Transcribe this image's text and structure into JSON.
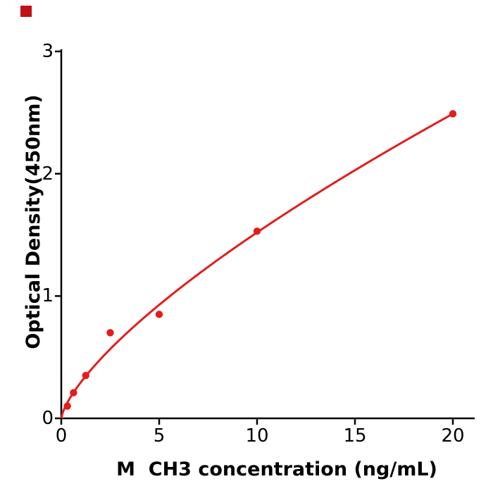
{
  "corner_mark": {
    "color": "#c01016"
  },
  "chart_data": {
    "type": "scatter",
    "title": "",
    "xlabel": "M  CH3 concentration (ng/mL)",
    "ylabel": "Optical Density(450nm)",
    "x": [
      0.312,
      0.625,
      1.25,
      2.5,
      5,
      10,
      20
    ],
    "y": [
      0.1,
      0.21,
      0.35,
      0.7,
      0.85,
      1.53,
      2.49
    ],
    "fit_curve": {
      "type": "power",
      "a": 0.295,
      "b": 0.712,
      "x_start": 0,
      "x_end": 20
    },
    "xlim": [
      0,
      21.1
    ],
    "ylim": [
      0,
      3
    ],
    "xticks": [
      0,
      5,
      10,
      15,
      20
    ],
    "yticks": [
      0,
      1,
      2,
      3
    ],
    "grid": false,
    "legend": null,
    "point_color": "#e41c1c",
    "line_color": "#e41c1c",
    "axis_color": "#000000"
  }
}
